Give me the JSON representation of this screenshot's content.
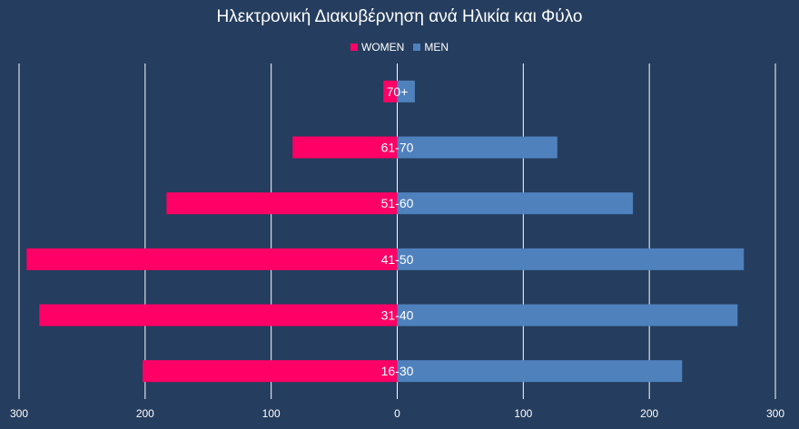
{
  "chart_data": {
    "type": "bar",
    "title": "Ηλεκτρονική Διακυβέρνηση ανά Ηλικία και Φύλο",
    "categories": [
      "16-30",
      "31-40",
      "41-50",
      "51-60",
      "61-70",
      "70+"
    ],
    "series": [
      {
        "name": "WOMEN",
        "values": [
          202,
          284,
          294,
          183,
          83,
          11
        ]
      },
      {
        "name": "MEN",
        "values": [
          226,
          270,
          275,
          187,
          127,
          14
        ]
      }
    ],
    "xlim": [
      -300,
      300
    ],
    "xticks": [
      {
        "value": -300,
        "label": "300"
      },
      {
        "value": -200,
        "label": "200"
      },
      {
        "value": -100,
        "label": "100"
      },
      {
        "value": 0,
        "label": "0"
      },
      {
        "value": 100,
        "label": "100"
      },
      {
        "value": 200,
        "label": "200"
      },
      {
        "value": 300,
        "label": "300"
      }
    ],
    "grid": true,
    "legend_position": "top",
    "colors": {
      "WOMEN": "#ff0066",
      "MEN": "#4f81bd",
      "background": "#253d5e",
      "grid": "#ffffff"
    }
  }
}
